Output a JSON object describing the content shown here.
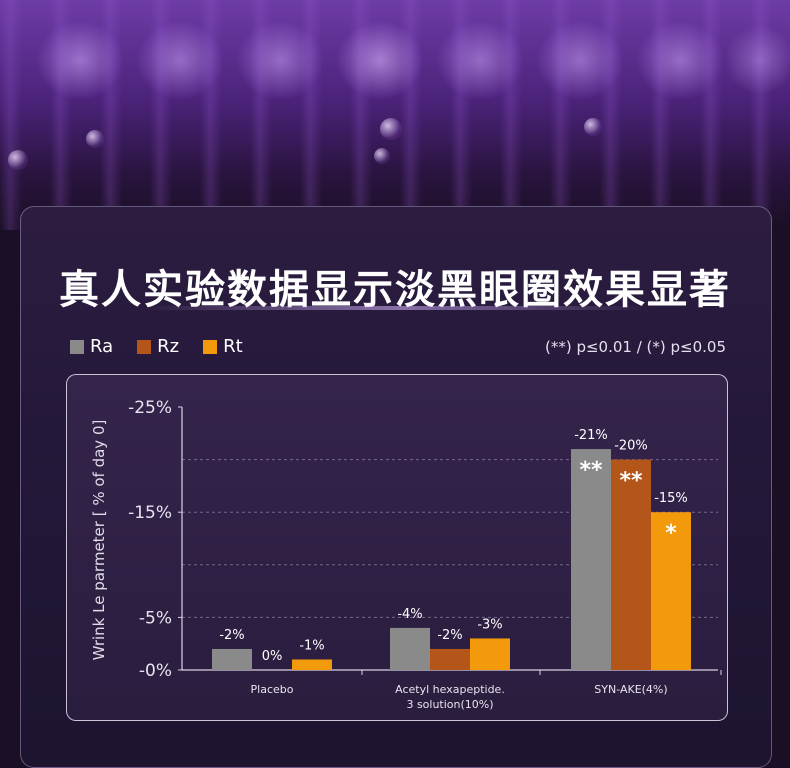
{
  "title": "真人实验数据显示淡黑眼圈效果显著",
  "legend": [
    {
      "label": "Ra",
      "color": "#8a8a8a"
    },
    {
      "label": "Rz",
      "color": "#b4561a"
    },
    {
      "label": "Rt",
      "color": "#f39a0c"
    }
  ],
  "significance_note": "(**) p≤0.01 / (*) p≤0.05",
  "chart_data": {
    "type": "bar",
    "title": "真人实验数据显示淡黑眼圈效果显著",
    "ylabel": "Wrink Le parmeter [ % of day 0]",
    "xlabel": "",
    "ylim": [
      0,
      -25
    ],
    "yticks": [
      {
        "value": -25,
        "label": "-25%"
      },
      {
        "value": -15,
        "label": "-15%"
      },
      {
        "value": -5,
        "label": "-5%"
      },
      {
        "value": 0,
        "label": "-0%"
      }
    ],
    "gridlines": [
      -5,
      -10,
      -15,
      -20
    ],
    "categories": [
      {
        "lines": [
          "Placebo"
        ]
      },
      {
        "lines": [
          "Acetyl hexapeptide.",
          "3 solution(10%)"
        ]
      },
      {
        "lines": [
          "SYN-AKE(4%)"
        ]
      }
    ],
    "series": [
      {
        "name": "Ra",
        "color": "#8a8a8a",
        "values": [
          -2,
          -4,
          -21
        ],
        "labels": [
          "-2%",
          "-4%",
          "-21%"
        ],
        "stars": [
          "",
          "",
          "**"
        ]
      },
      {
        "name": "Rz",
        "color": "#b4561a",
        "values": [
          0,
          -2,
          -20
        ],
        "labels": [
          "0%",
          "-2%",
          "-20%"
        ],
        "stars": [
          "",
          "",
          "**"
        ]
      },
      {
        "name": "Rt",
        "color": "#f39a0c",
        "values": [
          -1,
          -3,
          -15
        ],
        "labels": [
          "-1%",
          "-3%",
          "-15%"
        ],
        "stars": [
          "",
          "",
          "*"
        ]
      }
    ]
  }
}
